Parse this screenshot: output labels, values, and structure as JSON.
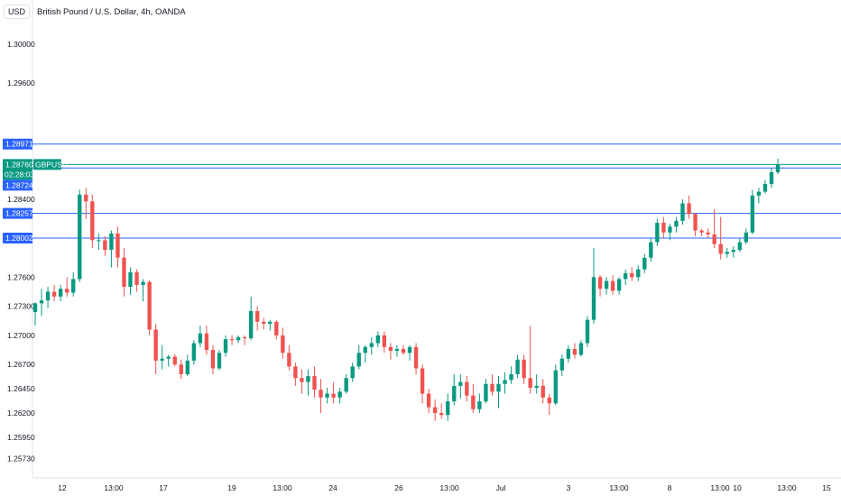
{
  "header": {
    "currency_label": "USD",
    "title": "British Pound / U.S. Dollar, 4h, OANDA"
  },
  "colors": {
    "up": "#26a69a",
    "down": "#ef5350",
    "up_dark": "#089981",
    "hline": "#2962ff",
    "tag_bg": "#2962ff",
    "price_tag_bg": "#089981"
  },
  "price_axis": {
    "ticks": [
      "1.30000",
      "1.29600",
      "1.28400",
      "1.27600",
      "1.27300",
      "1.27000",
      "1.26700",
      "1.26450",
      "1.26200",
      "1.25950",
      "1.25730"
    ],
    "tick_values": [
      1.3,
      1.296,
      1.284,
      1.276,
      1.273,
      1.27,
      1.267,
      1.2645,
      1.262,
      1.2595,
      1.2573
    ]
  },
  "time_axis": {
    "labels": [
      "12",
      "13:00",
      "17",
      "19",
      "13:00",
      "24",
      "26",
      "13:00",
      "Jul",
      "3",
      "13:00",
      "8",
      "13:00",
      "10",
      "13:00",
      "15"
    ]
  },
  "horizontal_lines": [
    {
      "label": "1.28971",
      "value": 1.28971
    },
    {
      "label": "1.28724",
      "value": 1.28724
    },
    {
      "label": "1.28257",
      "value": 1.28257
    },
    {
      "label": "1.28002",
      "value": 1.28002
    }
  ],
  "current_price": {
    "label": "1.28760",
    "countdown": "02:28:03",
    "symbol": "GBPUSD",
    "value": 1.2876
  },
  "chart_data": {
    "type": "candlestick",
    "title": "British Pound / U.S. Dollar, 4h, OANDA",
    "ylabel": "USD",
    "ylim": [
      1.2555,
      1.3025
    ],
    "candles": [
      [
        1.2724,
        1.2734,
        1.271,
        1.2733
      ],
      [
        1.2733,
        1.2748,
        1.272,
        1.2736
      ],
      [
        1.2736,
        1.275,
        1.2728,
        1.2745
      ],
      [
        1.2745,
        1.2752,
        1.2735,
        1.274
      ],
      [
        1.274,
        1.2752,
        1.2735,
        1.2748
      ],
      [
        1.2748,
        1.276,
        1.274,
        1.2744
      ],
      [
        1.2744,
        1.2765,
        1.274,
        1.2758
      ],
      [
        1.2758,
        1.285,
        1.2755,
        1.2845
      ],
      [
        1.2845,
        1.2852,
        1.282,
        1.2838
      ],
      [
        1.2838,
        1.2845,
        1.279,
        1.2798
      ],
      [
        1.2798,
        1.2805,
        1.2788,
        1.2798
      ],
      [
        1.2798,
        1.2802,
        1.2782,
        1.2788
      ],
      [
        1.2788,
        1.2808,
        1.277,
        1.2805
      ],
      [
        1.2805,
        1.2812,
        1.277,
        1.278
      ],
      [
        1.278,
        1.279,
        1.274,
        1.275
      ],
      [
        1.275,
        1.277,
        1.2742,
        1.2765
      ],
      [
        1.2765,
        1.2768,
        1.2745,
        1.2752
      ],
      [
        1.2752,
        1.2758,
        1.2735,
        1.2755
      ],
      [
        1.2755,
        1.2757,
        1.27,
        1.2706
      ],
      [
        1.2706,
        1.2712,
        1.266,
        1.2674
      ],
      [
        1.2674,
        1.269,
        1.2665,
        1.2676
      ],
      [
        1.2676,
        1.268,
        1.2668,
        1.2678
      ],
      [
        1.2678,
        1.2681,
        1.2668,
        1.267
      ],
      [
        1.267,
        1.2675,
        1.2655,
        1.266
      ],
      [
        1.266,
        1.268,
        1.2658,
        1.2674
      ],
      [
        1.2674,
        1.2695,
        1.267,
        1.2692
      ],
      [
        1.2692,
        1.271,
        1.2688,
        1.2702
      ],
      [
        1.2702,
        1.271,
        1.268,
        1.2685
      ],
      [
        1.2685,
        1.269,
        1.266,
        1.2666
      ],
      [
        1.2666,
        1.2685,
        1.2664,
        1.2682
      ],
      [
        1.2682,
        1.27,
        1.2678,
        1.2696
      ],
      [
        1.2696,
        1.27,
        1.269,
        1.2695
      ],
      [
        1.2695,
        1.27,
        1.2692,
        1.2698
      ],
      [
        1.2698,
        1.27,
        1.269,
        1.2697
      ],
      [
        1.2697,
        1.274,
        1.2695,
        1.2725
      ],
      [
        1.2725,
        1.273,
        1.2705,
        1.2714
      ],
      [
        1.2714,
        1.2718,
        1.2706,
        1.2712
      ],
      [
        1.2712,
        1.2716,
        1.2705,
        1.2714
      ],
      [
        1.2714,
        1.2716,
        1.2696,
        1.27
      ],
      [
        1.27,
        1.2708,
        1.2676,
        1.2682
      ],
      [
        1.2682,
        1.269,
        1.2664,
        1.2668
      ],
      [
        1.2668,
        1.2672,
        1.2648,
        1.2656
      ],
      [
        1.2656,
        1.2665,
        1.264,
        1.2652
      ],
      [
        1.2652,
        1.2665,
        1.2638,
        1.2658
      ],
      [
        1.2658,
        1.2668,
        1.2636,
        1.2644
      ],
      [
        1.2644,
        1.2655,
        1.262,
        1.2636
      ],
      [
        1.2636,
        1.2646,
        1.263,
        1.264
      ],
      [
        1.264,
        1.2652,
        1.263,
        1.2636
      ],
      [
        1.2636,
        1.2646,
        1.263,
        1.2642
      ],
      [
        1.2642,
        1.266,
        1.264,
        1.2656
      ],
      [
        1.2656,
        1.2672,
        1.2652,
        1.2668
      ],
      [
        1.2668,
        1.269,
        1.2665,
        1.2682
      ],
      [
        1.2682,
        1.269,
        1.2672,
        1.2688
      ],
      [
        1.2688,
        1.2698,
        1.268,
        1.2692
      ],
      [
        1.2692,
        1.2704,
        1.2688,
        1.27
      ],
      [
        1.27,
        1.2704,
        1.2682,
        1.2688
      ],
      [
        1.2688,
        1.2692,
        1.2675,
        1.2684
      ],
      [
        1.2684,
        1.269,
        1.2678,
        1.2686
      ],
      [
        1.2686,
        1.269,
        1.268,
        1.2682
      ],
      [
        1.2682,
        1.269,
        1.2674,
        1.2688
      ],
      [
        1.2688,
        1.2692,
        1.266,
        1.2666
      ],
      [
        1.2666,
        1.267,
        1.263,
        1.264
      ],
      [
        1.264,
        1.2645,
        1.262,
        1.2626
      ],
      [
        1.2626,
        1.2634,
        1.2612,
        1.262
      ],
      [
        1.262,
        1.263,
        1.2614,
        1.2618
      ],
      [
        1.2618,
        1.264,
        1.2612,
        1.2632
      ],
      [
        1.2632,
        1.266,
        1.2628,
        1.2648
      ],
      [
        1.2648,
        1.266,
        1.2635,
        1.2652
      ],
      [
        1.2652,
        1.2658,
        1.2632,
        1.2638
      ],
      [
        1.2638,
        1.265,
        1.262,
        1.2624
      ],
      [
        1.2624,
        1.264,
        1.262,
        1.2632
      ],
      [
        1.2632,
        1.2655,
        1.263,
        1.265
      ],
      [
        1.265,
        1.266,
        1.2638,
        1.2642
      ],
      [
        1.2642,
        1.2658,
        1.2625,
        1.265
      ],
      [
        1.265,
        1.2662,
        1.264,
        1.2654
      ],
      [
        1.2654,
        1.2668,
        1.265,
        1.266
      ],
      [
        1.266,
        1.268,
        1.2656,
        1.2675
      ],
      [
        1.2675,
        1.268,
        1.265,
        1.2656
      ],
      [
        1.2656,
        1.271,
        1.264,
        1.2646
      ],
      [
        1.2646,
        1.266,
        1.264,
        1.2648
      ],
      [
        1.2648,
        1.2655,
        1.263,
        1.2636
      ],
      [
        1.2636,
        1.264,
        1.2618,
        1.263
      ],
      [
        1.263,
        1.267,
        1.2628,
        1.2664
      ],
      [
        1.2664,
        1.268,
        1.2658,
        1.2676
      ],
      [
        1.2676,
        1.269,
        1.2672,
        1.2686
      ],
      [
        1.2686,
        1.2692,
        1.2676,
        1.268
      ],
      [
        1.268,
        1.2695,
        1.2678,
        1.2692
      ],
      [
        1.2692,
        1.272,
        1.2688,
        1.2716
      ],
      [
        1.2716,
        1.279,
        1.2712,
        1.276
      ],
      [
        1.276,
        1.2762,
        1.274,
        1.2748
      ],
      [
        1.2748,
        1.276,
        1.2742,
        1.2756
      ],
      [
        1.2756,
        1.2762,
        1.2742,
        1.2746
      ],
      [
        1.2746,
        1.276,
        1.2742,
        1.2758
      ],
      [
        1.2758,
        1.2768,
        1.2752,
        1.2764
      ],
      [
        1.2764,
        1.277,
        1.2756,
        1.276
      ],
      [
        1.276,
        1.2772,
        1.2756,
        1.2768
      ],
      [
        1.2768,
        1.2784,
        1.2764,
        1.278
      ],
      [
        1.278,
        1.28,
        1.2776,
        1.2796
      ],
      [
        1.2796,
        1.282,
        1.2792,
        1.2816
      ],
      [
        1.2816,
        1.2822,
        1.28,
        1.2806
      ],
      [
        1.2806,
        1.2815,
        1.2798,
        1.2812
      ],
      [
        1.2812,
        1.2822,
        1.2806,
        1.2818
      ],
      [
        1.2818,
        1.284,
        1.2814,
        1.2836
      ],
      [
        1.2836,
        1.2844,
        1.282,
        1.2825
      ],
      [
        1.2825,
        1.2826,
        1.2802,
        1.2808
      ],
      [
        1.2808,
        1.281,
        1.2802,
        1.2806
      ],
      [
        1.2806,
        1.281,
        1.28,
        1.2804
      ],
      [
        1.2804,
        1.283,
        1.279,
        1.2794
      ],
      [
        1.2794,
        1.2822,
        1.2778,
        1.2784
      ],
      [
        1.2784,
        1.279,
        1.278,
        1.2786
      ],
      [
        1.2786,
        1.2792,
        1.278,
        1.2788
      ],
      [
        1.2788,
        1.28,
        1.2786,
        1.2796
      ],
      [
        1.2796,
        1.281,
        1.2794,
        1.2806
      ],
      [
        1.2806,
        1.285,
        1.2804,
        1.2844
      ],
      [
        1.2844,
        1.2852,
        1.2836,
        1.2848
      ],
      [
        1.2848,
        1.286,
        1.2846,
        1.2856
      ],
      [
        1.2856,
        1.2872,
        1.2852,
        1.2868
      ],
      [
        1.2868,
        1.2882,
        1.2866,
        1.2876
      ]
    ]
  }
}
